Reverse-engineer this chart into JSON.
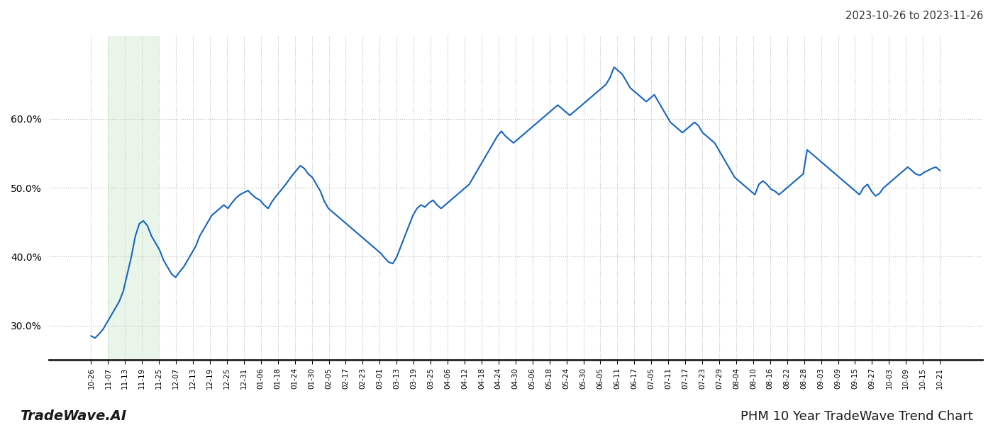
{
  "title_right": "2023-10-26 to 2023-11-26",
  "footer_left": "TradeWave.AI",
  "footer_right": "PHM 10 Year TradeWave Trend Chart",
  "line_color": "#1565c0",
  "line_width": 1.5,
  "shade_color": "#c8e6c9",
  "shade_alpha": 0.4,
  "background_color": "#ffffff",
  "grid_color": "#bbbbbb",
  "ylim_min": 25.0,
  "ylim_max": 72.0,
  "yticks": [
    30.0,
    40.0,
    50.0,
    60.0
  ],
  "x_labels": [
    "10-26",
    "11-07",
    "11-13",
    "11-19",
    "11-25",
    "12-07",
    "12-13",
    "12-19",
    "12-25",
    "12-31",
    "01-06",
    "01-18",
    "01-24",
    "01-30",
    "02-05",
    "02-17",
    "02-23",
    "03-01",
    "03-13",
    "03-19",
    "03-25",
    "04-06",
    "04-12",
    "04-18",
    "04-24",
    "04-30",
    "05-06",
    "05-18",
    "05-24",
    "05-30",
    "06-05",
    "06-11",
    "06-17",
    "07-05",
    "07-11",
    "07-17",
    "07-23",
    "07-29",
    "08-04",
    "08-10",
    "08-16",
    "08-22",
    "08-28",
    "09-03",
    "09-09",
    "09-15",
    "09-27",
    "10-03",
    "10-09",
    "10-15",
    "10-21"
  ],
  "values": [
    28.5,
    28.2,
    28.8,
    29.5,
    30.5,
    31.5,
    32.5,
    33.5,
    35.0,
    37.5,
    40.0,
    43.0,
    44.8,
    45.2,
    44.5,
    43.0,
    42.0,
    41.0,
    39.5,
    38.5,
    37.5,
    37.0,
    37.8,
    38.5,
    39.5,
    40.5,
    41.5,
    43.0,
    44.0,
    45.0,
    46.0,
    46.5,
    47.0,
    47.5,
    47.0,
    47.8,
    48.5,
    49.0,
    49.3,
    49.6,
    49.0,
    48.5,
    48.2,
    47.5,
    47.0,
    48.0,
    48.8,
    49.5,
    50.2,
    51.0,
    51.8,
    52.5,
    53.2,
    52.8,
    52.0,
    51.5,
    50.5,
    49.5,
    48.0,
    47.0,
    46.5,
    46.0,
    45.5,
    45.0,
    44.5,
    44.0,
    43.5,
    43.0,
    42.5,
    42.0,
    41.5,
    41.0,
    40.5,
    39.8,
    39.2,
    39.0,
    40.0,
    41.5,
    43.0,
    44.5,
    46.0,
    47.0,
    47.5,
    47.2,
    47.8,
    48.2,
    47.5,
    47.0,
    47.5,
    48.0,
    48.5,
    49.0,
    49.5,
    50.0,
    50.5,
    51.5,
    52.5,
    53.5,
    54.5,
    55.5,
    56.5,
    57.5,
    58.2,
    57.5,
    57.0,
    56.5,
    57.0,
    57.5,
    58.0,
    58.5,
    59.0,
    59.5,
    60.0,
    60.5,
    61.0,
    61.5,
    62.0,
    61.5,
    61.0,
    60.5,
    61.0,
    61.5,
    62.0,
    62.5,
    63.0,
    63.5,
    64.0,
    64.5,
    65.0,
    66.0,
    67.5,
    67.0,
    66.5,
    65.5,
    64.5,
    64.0,
    63.5,
    63.0,
    62.5,
    63.0,
    63.5,
    62.5,
    61.5,
    60.5,
    59.5,
    59.0,
    58.5,
    58.0,
    58.5,
    59.0,
    59.5,
    59.0,
    58.0,
    57.5,
    57.0,
    56.5,
    55.5,
    54.5,
    53.5,
    52.5,
    51.5,
    51.0,
    50.5,
    50.0,
    49.5,
    49.0,
    50.5,
    51.0,
    50.5,
    49.8,
    49.5,
    49.0,
    49.5,
    50.0,
    50.5,
    51.0,
    51.5,
    52.0,
    55.5,
    55.0,
    54.5,
    54.0,
    53.5,
    53.0,
    52.5,
    52.0,
    51.5,
    51.0,
    50.5,
    50.0,
    49.5,
    49.0,
    50.0,
    50.5,
    49.5,
    48.8,
    49.2,
    50.0,
    50.5,
    51.0,
    51.5,
    52.0,
    52.5,
    53.0,
    52.5,
    52.0,
    51.8,
    52.2,
    52.5,
    52.8,
    53.0,
    52.5
  ],
  "shade_label_start": "11-07",
  "shade_label_end": "11-25"
}
